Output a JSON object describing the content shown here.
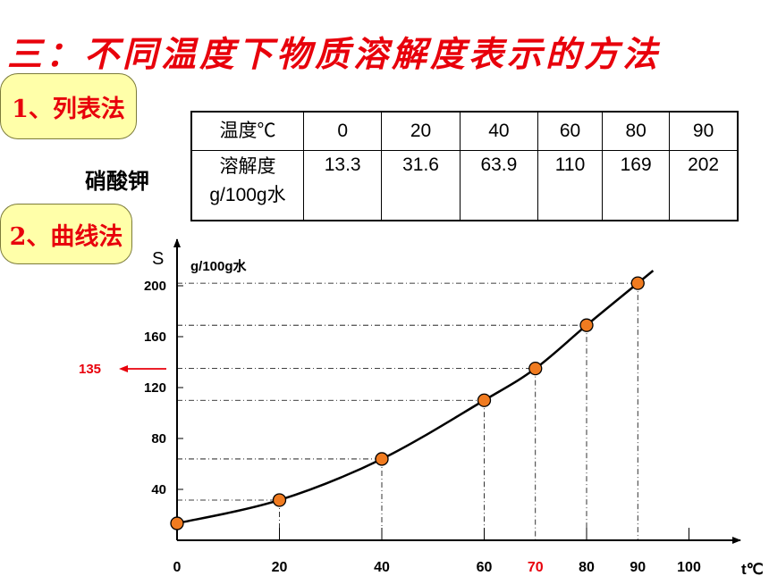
{
  "title": "三：不同温度下物质溶解度表示的方法",
  "method1_label": "1、列表法",
  "method2_label": "2、曲线法",
  "substance_label": "硝酸钾",
  "table": {
    "row1_header": "温度℃",
    "row2_header_line1": "溶解度",
    "row2_header_line2": "g/100g水",
    "temperatures": [
      "0",
      "20",
      "40",
      "60",
      "80",
      "90"
    ],
    "solubilities": [
      "13.3",
      "31.6",
      "63.9",
      "110",
      "169",
      "202"
    ]
  },
  "colors": {
    "title": "#e8000b",
    "pill_bg": "#ffffa9",
    "point": "#f07b20",
    "highlight": "#e8000b"
  },
  "chart_data": {
    "type": "scatter",
    "ylabel": "S",
    "yunit": "g/100g水",
    "xlabel": "t℃",
    "x_ticks": [
      "0",
      "20",
      "40",
      "60",
      "70",
      "80",
      "90",
      "100"
    ],
    "y_ticks": [
      "40",
      "80",
      "120",
      "160",
      "200"
    ],
    "xlim": [
      0,
      110
    ],
    "ylim": [
      0,
      220
    ],
    "points": [
      {
        "x": 0,
        "y": 13.3
      },
      {
        "x": 20,
        "y": 31.6
      },
      {
        "x": 40,
        "y": 63.9
      },
      {
        "x": 60,
        "y": 110
      },
      {
        "x": 70,
        "y": 135
      },
      {
        "x": 80,
        "y": 169
      },
      {
        "x": 90,
        "y": 202
      }
    ],
    "annotation": {
      "label": "135",
      "y": 135,
      "x_highlight": "70"
    }
  }
}
